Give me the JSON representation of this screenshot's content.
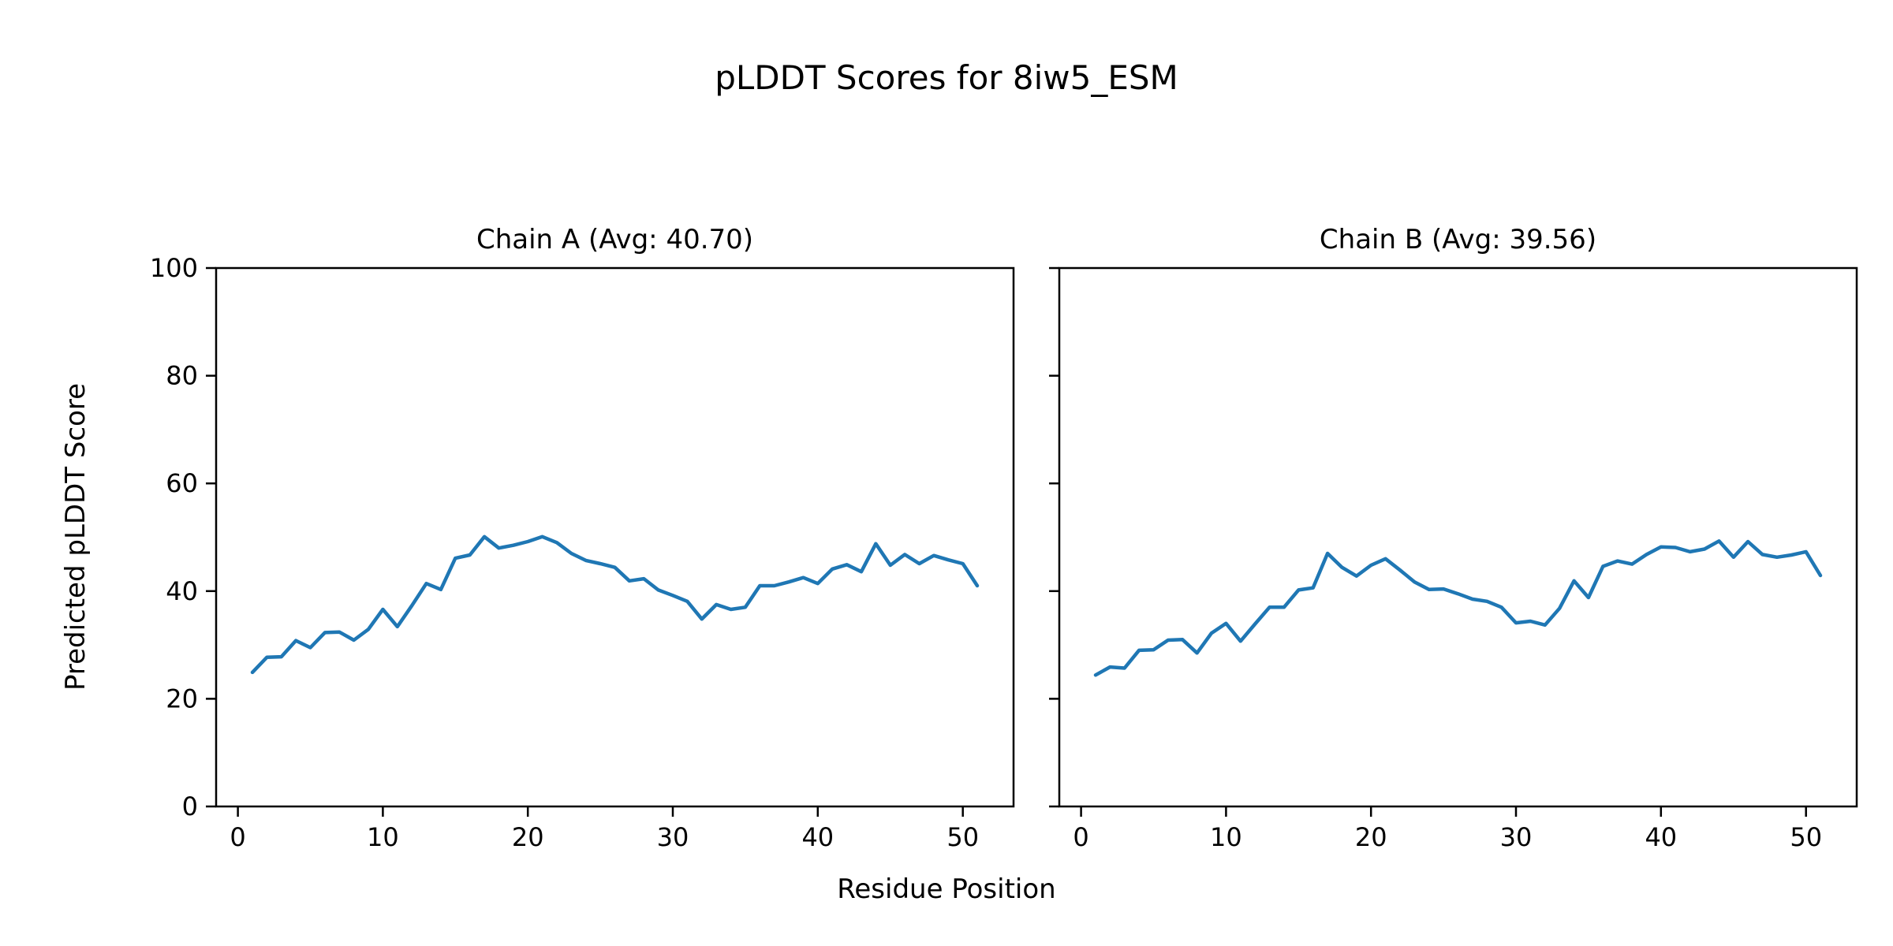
{
  "title": "pLDDT Scores for 8iw5_ESM",
  "xlabel": "Residue Position",
  "ylabel": "Predicted pLDDT Score",
  "line_color": "#1f77b4",
  "background_color": "#ffffff",
  "chart_data": [
    {
      "type": "line",
      "title": "Chain A (Avg: 40.70)",
      "chain": "A",
      "avg": 40.7,
      "x": [
        1,
        2,
        3,
        4,
        5,
        6,
        7,
        8,
        9,
        10,
        11,
        12,
        13,
        14,
        15,
        16,
        17,
        18,
        19,
        20,
        21,
        22,
        23,
        24,
        25,
        26,
        27,
        28,
        29,
        30,
        31,
        32,
        33,
        34,
        35,
        36,
        37,
        38,
        39,
        40,
        41,
        42,
        43,
        44,
        45,
        46,
        47,
        48,
        49,
        50,
        51
      ],
      "values": [
        24.9,
        27.7,
        27.8,
        30.8,
        29.5,
        32.3,
        32.4,
        30.9,
        32.9,
        36.6,
        33.4,
        37.3,
        41.4,
        40.3,
        46.1,
        46.7,
        50.1,
        48.0,
        48.5,
        49.2,
        50.1,
        49.0,
        47.0,
        45.7,
        45.1,
        44.4,
        41.9,
        42.3,
        40.2,
        39.2,
        38.1,
        34.8,
        37.5,
        36.6,
        37.0,
        41.0,
        41.0,
        41.7,
        42.5,
        41.4,
        44.1,
        44.9,
        43.6,
        48.8,
        44.8,
        46.8,
        45.1,
        46.6,
        45.8,
        45.1,
        41.0
      ],
      "xlim": [
        -1.5,
        53.5
      ],
      "ylim": [
        0,
        100
      ],
      "x_ticks": [
        0,
        10,
        20,
        30,
        40,
        50
      ],
      "y_ticks": [
        0,
        20,
        40,
        60,
        80,
        100
      ],
      "show_y_tick_labels": true,
      "grid": false,
      "legend_position": "none"
    },
    {
      "type": "line",
      "title": "Chain B (Avg: 39.56)",
      "chain": "B",
      "avg": 39.56,
      "x": [
        1,
        2,
        3,
        4,
        5,
        6,
        7,
        8,
        9,
        10,
        11,
        12,
        13,
        14,
        15,
        16,
        17,
        18,
        19,
        20,
        21,
        22,
        23,
        24,
        25,
        26,
        27,
        28,
        29,
        30,
        31,
        32,
        33,
        34,
        35,
        36,
        37,
        38,
        39,
        40,
        41,
        42,
        43,
        44,
        45,
        46,
        47,
        48,
        49,
        50,
        51
      ],
      "values": [
        24.4,
        25.9,
        25.7,
        29.0,
        29.1,
        30.9,
        31.0,
        28.5,
        32.2,
        34.0,
        30.7,
        33.9,
        37.0,
        37.0,
        40.2,
        40.6,
        47.0,
        44.4,
        42.8,
        44.8,
        46.0,
        43.9,
        41.7,
        40.3,
        40.4,
        39.5,
        38.5,
        38.1,
        37.0,
        34.1,
        34.4,
        33.7,
        36.8,
        41.9,
        38.8,
        44.6,
        45.6,
        45.0,
        46.8,
        48.2,
        48.1,
        47.3,
        47.8,
        49.3,
        46.3,
        49.2,
        46.8,
        46.3,
        46.7,
        47.3,
        42.9
      ],
      "xlim": [
        -1.5,
        53.5
      ],
      "ylim": [
        0,
        100
      ],
      "x_ticks": [
        0,
        10,
        20,
        30,
        40,
        50
      ],
      "y_ticks": [
        0,
        20,
        40,
        60,
        80,
        100
      ],
      "show_y_tick_labels": false,
      "grid": false,
      "legend_position": "none"
    }
  ]
}
